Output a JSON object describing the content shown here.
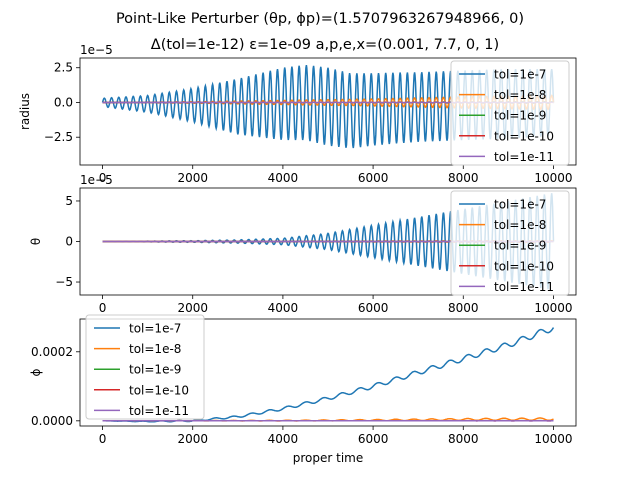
{
  "figure": {
    "title_line1": "Point-Like Perturber (θp, ϕp)=(1.5707963267948966, 0)",
    "title_line2": "Δ(tol=1e-12) ε=1e-09 a,p,e,x=(0.001, 7.7, 0, 1)"
  },
  "colors": {
    "tol=1e-7": "#1f77b4",
    "tol=1e-8": "#ff7f0e",
    "tol=1e-9": "#2ca02c",
    "tol=1e-10": "#d62728",
    "tol=1e-11": "#9467bd"
  },
  "chart_data": [
    {
      "type": "line",
      "title": "",
      "xlabel": "",
      "ylabel": "radius",
      "offset_text": "1e−5",
      "xlim": [
        -500,
        10500
      ],
      "ylim": [
        -4.5,
        3.2
      ],
      "xticks": [
        0,
        2000,
        4000,
        6000,
        8000,
        10000
      ],
      "xtick_labels": [
        "0",
        "2000",
        "4000",
        "6000",
        "8000",
        "10000"
      ],
      "yticks": [
        -2.5,
        0.0,
        2.5
      ],
      "ytick_labels": [
        "−2.5",
        "0.0",
        "2.5"
      ],
      "legend_loc": "right",
      "grid": false,
      "series": [
        {
          "name": "tol=1e-7",
          "style": "oscillation",
          "period": 160,
          "envelope": {
            "x": [
              0,
              1000,
              2000,
              3000,
              4000,
              5000,
              6000,
              7000,
              8000,
              9000,
              10000
            ],
            "y": [
              0.3,
              0.6,
              1.2,
              2.0,
              2.6,
              2.8,
              2.6,
              2.5,
              2.5,
              2.5,
              2.4
            ]
          },
          "offset": {
            "x": [
              0,
              3000,
              4500,
              5500,
              6500,
              8000,
              10000
            ],
            "y": [
              0,
              -0.3,
              0.0,
              -0.6,
              -0.4,
              -0.2,
              0.0
            ]
          }
        },
        {
          "name": "tol=1e-8",
          "style": "oscillation",
          "period": 160,
          "envelope": {
            "x": [
              0,
              2000,
              4000,
              6000,
              8000,
              10000
            ],
            "y": [
              0.0,
              0.05,
              0.15,
              0.25,
              0.4,
              0.5
            ]
          },
          "offset": {
            "x": [
              0,
              10000
            ],
            "y": [
              0,
              0
            ]
          }
        },
        {
          "name": "tol=1e-9",
          "style": "oscillation",
          "period": 160,
          "envelope": {
            "x": [
              0,
              10000
            ],
            "y": [
              0.0,
              0.05
            ]
          },
          "offset": {
            "x": [
              0,
              10000
            ],
            "y": [
              0,
              0
            ]
          }
        },
        {
          "name": "tol=1e-10",
          "style": "oscillation",
          "period": 160,
          "envelope": {
            "x": [
              0,
              10000
            ],
            "y": [
              0.0,
              0.02
            ]
          },
          "offset": {
            "x": [
              0,
              10000
            ],
            "y": [
              0,
              0
            ]
          }
        },
        {
          "name": "tol=1e-11",
          "style": "oscillation",
          "period": 160,
          "envelope": {
            "x": [
              0,
              10000
            ],
            "y": [
              0.0,
              0.02
            ]
          },
          "offset": {
            "x": [
              0,
              10000
            ],
            "y": [
              0,
              0
            ]
          }
        }
      ]
    },
    {
      "type": "line",
      "title": "",
      "xlabel": "",
      "ylabel": "θ",
      "offset_text": "1e−5",
      "xlim": [
        -500,
        10500
      ],
      "ylim": [
        -6.6,
        6.6
      ],
      "xticks": [
        0,
        2000,
        4000,
        6000,
        8000,
        10000
      ],
      "xtick_labels": [
        "0",
        "2000",
        "4000",
        "6000",
        "8000",
        "10000"
      ],
      "yticks": [
        -5,
        0,
        5
      ],
      "ytick_labels": [
        "−5",
        "0",
        "5"
      ],
      "legend_loc": "right",
      "grid": false,
      "series": [
        {
          "name": "tol=1e-7",
          "style": "oscillation",
          "period": 160,
          "envelope": {
            "x": [
              0,
              1000,
              2000,
              3000,
              4000,
              5000,
              6000,
              7000,
              8000,
              9000,
              10000
            ],
            "y": [
              0.0,
              0.05,
              0.1,
              0.2,
              0.4,
              1.0,
              2.0,
              3.0,
              4.0,
              5.0,
              6.0
            ]
          },
          "offset": {
            "x": [
              0,
              10000
            ],
            "y": [
              0,
              0
            ]
          }
        },
        {
          "name": "tol=1e-8",
          "style": "oscillation",
          "period": 160,
          "envelope": {
            "x": [
              0,
              10000
            ],
            "y": [
              0.0,
              0.1
            ]
          },
          "offset": {
            "x": [
              0,
              10000
            ],
            "y": [
              0,
              0
            ]
          }
        },
        {
          "name": "tol=1e-9",
          "style": "oscillation",
          "period": 160,
          "envelope": {
            "x": [
              0,
              10000
            ],
            "y": [
              0.0,
              0.02
            ]
          },
          "offset": {
            "x": [
              0,
              10000
            ],
            "y": [
              0,
              0
            ]
          }
        },
        {
          "name": "tol=1e-10",
          "style": "oscillation",
          "period": 160,
          "envelope": {
            "x": [
              0,
              10000
            ],
            "y": [
              0.0,
              0.01
            ]
          },
          "offset": {
            "x": [
              0,
              10000
            ],
            "y": [
              0,
              0
            ]
          }
        },
        {
          "name": "tol=1e-11",
          "style": "oscillation",
          "period": 160,
          "envelope": {
            "x": [
              0,
              10000
            ],
            "y": [
              0.0,
              0.01
            ]
          },
          "offset": {
            "x": [
              0,
              10000
            ],
            "y": [
              0,
              0
            ]
          }
        }
      ]
    },
    {
      "type": "line",
      "title": "",
      "xlabel": "proper time",
      "ylabel": "ϕ",
      "offset_text": "",
      "xlim": [
        -500,
        10500
      ],
      "ylim": [
        -1.5e-05,
        0.000295
      ],
      "xticks": [
        0,
        2000,
        4000,
        6000,
        8000,
        10000
      ],
      "xtick_labels": [
        "0",
        "2000",
        "4000",
        "6000",
        "8000",
        "10000"
      ],
      "yticks": [
        0.0,
        0.0002
      ],
      "ytick_labels": [
        "0.0000",
        "0.0002"
      ],
      "legend_loc": "upper left",
      "grid": false,
      "series": [
        {
          "name": "tol=1e-7",
          "style": "trend_oscillation",
          "period": 400,
          "trend": {
            "x": [
              0,
              1000,
              2000,
              3000,
              4000,
              5000,
              6000,
              7000,
              8000,
              9000,
              10000
            ],
            "y": [
              0.0,
              -2e-06,
              0.0,
              1.2e-05,
              3.5e-05,
              6.5e-05,
              0.0001,
              0.00014,
              0.00018,
              0.00022,
              0.00027
            ]
          },
          "amplitude": {
            "x": [
              0,
              2000,
              6000,
              10000
            ],
            "y": [
              0.0,
              2e-06,
              6e-06,
              9e-06
            ]
          }
        },
        {
          "name": "tol=1e-8",
          "style": "trend_oscillation",
          "period": 400,
          "trend": {
            "x": [
              0,
              4000,
              6000,
              8000,
              10000
            ],
            "y": [
              0.0,
              5e-07,
              2e-06,
              4e-06,
              5e-06
            ]
          },
          "amplitude": {
            "x": [
              0,
              4000,
              10000
            ],
            "y": [
              0.0,
              1e-06,
              3.5e-06
            ]
          }
        },
        {
          "name": "tol=1e-9",
          "style": "trend_oscillation",
          "period": 400,
          "trend": {
            "x": [
              0,
              10000
            ],
            "y": [
              0.0,
              3e-07
            ]
          },
          "amplitude": {
            "x": [
              0,
              10000
            ],
            "y": [
              0.0,
              3e-07
            ]
          }
        },
        {
          "name": "tol=1e-10",
          "style": "trend_oscillation",
          "period": 400,
          "trend": {
            "x": [
              0,
              10000
            ],
            "y": [
              0.0,
              0.0
            ]
          },
          "amplitude": {
            "x": [
              0,
              10000
            ],
            "y": [
              0.0,
              1e-07
            ]
          }
        },
        {
          "name": "tol=1e-11",
          "style": "trend_oscillation",
          "period": 400,
          "trend": {
            "x": [
              0,
              10000
            ],
            "y": [
              0.0,
              0.0
            ]
          },
          "amplitude": {
            "x": [
              0,
              10000
            ],
            "y": [
              0.0,
              1e-07
            ]
          }
        }
      ]
    }
  ]
}
